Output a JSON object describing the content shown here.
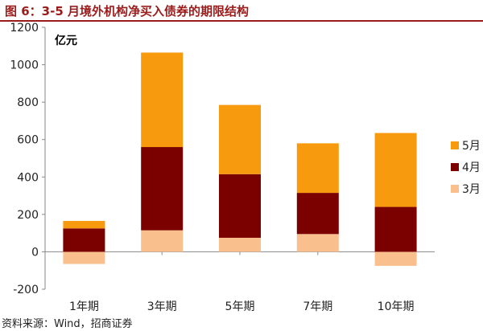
{
  "title": "图 6：3-5 月境外机构净买入债券的期限结构",
  "source": "资料来源：Wind，招商证券",
  "chart_data": {
    "type": "bar",
    "stacked": true,
    "unit_label": "亿元",
    "categories": [
      "1年期",
      "3年期",
      "5年期",
      "7年期",
      "10年期"
    ],
    "series": [
      {
        "name": "3月",
        "color": "#F9C08E",
        "values": [
          -65,
          115,
          75,
          95,
          -75
        ]
      },
      {
        "name": "4月",
        "color": "#7B0000",
        "values": [
          125,
          445,
          340,
          220,
          240
        ]
      },
      {
        "name": "5月",
        "color": "#F79A0E",
        "values": [
          40,
          505,
          370,
          265,
          395
        ]
      }
    ],
    "ylim": [
      -200,
      1200
    ],
    "yticks": [
      -200,
      0,
      200,
      400,
      600,
      800,
      1000,
      1200
    ],
    "legend_position": "right",
    "legend_order": [
      "5月",
      "4月",
      "3月"
    ],
    "grid": false
  }
}
